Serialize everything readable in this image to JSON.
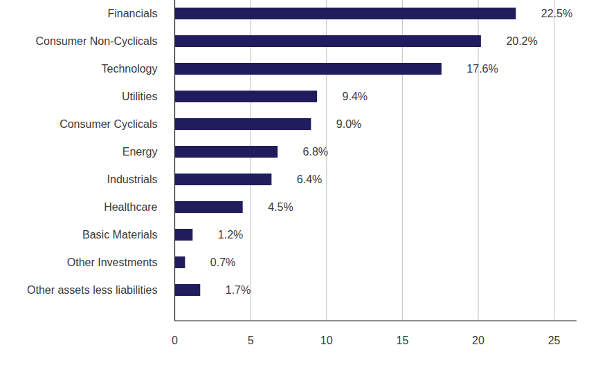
{
  "chart_data": {
    "type": "bar",
    "orientation": "horizontal",
    "categories": [
      "Financials",
      "Consumer Non-Cyclicals",
      "Technology",
      "Utilities",
      "Consumer Cyclicals",
      "Energy",
      "Industrials",
      "Healthcare",
      "Basic Materials",
      "Other Investments",
      "Other assets less liabilities"
    ],
    "values": [
      22.5,
      20.2,
      17.6,
      9.4,
      9.0,
      6.8,
      6.4,
      4.5,
      1.2,
      0.7,
      1.7
    ],
    "value_labels": [
      "22.5%",
      "20.2%",
      "17.6%",
      "9.4%",
      "9.0%",
      "6.8%",
      "6.4%",
      "4.5%",
      "1.2%",
      "0.7%",
      "1.7%"
    ],
    "color": "#211c5c",
    "xlim": [
      0,
      26.5
    ],
    "xticks": [
      0,
      5,
      10,
      15,
      20,
      25
    ],
    "grid": true,
    "data_labels": true
  }
}
